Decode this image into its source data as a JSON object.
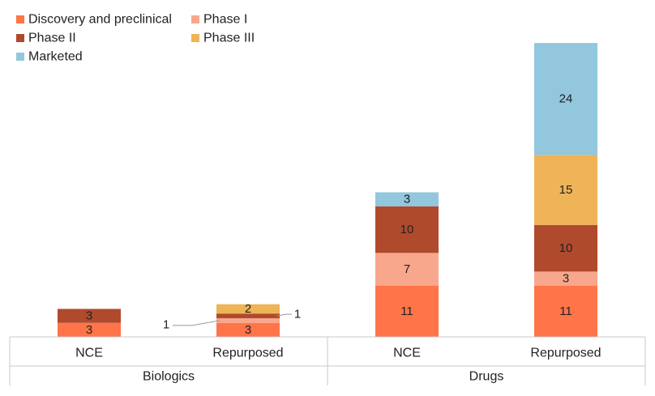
{
  "chart_data": {
    "type": "bar",
    "title": "",
    "xlabel": "",
    "ylabel": "",
    "ylim": [
      0,
      63
    ],
    "stacked": true,
    "legend_position": "top-left",
    "grid": false,
    "groups": [
      {
        "name": "Biologics",
        "categories": [
          "NCE",
          "Repurposed"
        ]
      },
      {
        "name": "Drugs",
        "categories": [
          "NCE",
          "Repurposed"
        ]
      }
    ],
    "series": [
      {
        "name": "Discovery and preclinical",
        "color": "#ff7448",
        "values": [
          3,
          3,
          11,
          11
        ]
      },
      {
        "name": "Phase I",
        "color": "#f8a78c",
        "values": [
          0,
          1,
          7,
          3
        ]
      },
      {
        "name": "Phase II",
        "color": "#b04a2d",
        "values": [
          3,
          1,
          10,
          10
        ]
      },
      {
        "name": "Phase III",
        "color": "#eeb457",
        "values": [
          0,
          2,
          0,
          15
        ]
      },
      {
        "name": "Marketed",
        "color": "#92c7de",
        "values": [
          0,
          0,
          3,
          24
        ]
      }
    ],
    "data_labels": [
      [
        "3",
        "",
        "3",
        "",
        ""
      ],
      [
        "3",
        "1",
        "1",
        "2",
        ""
      ],
      [
        "11",
        "7",
        "10",
        "",
        "3"
      ],
      [
        "11",
        "3",
        "10",
        "15",
        "24"
      ]
    ]
  }
}
